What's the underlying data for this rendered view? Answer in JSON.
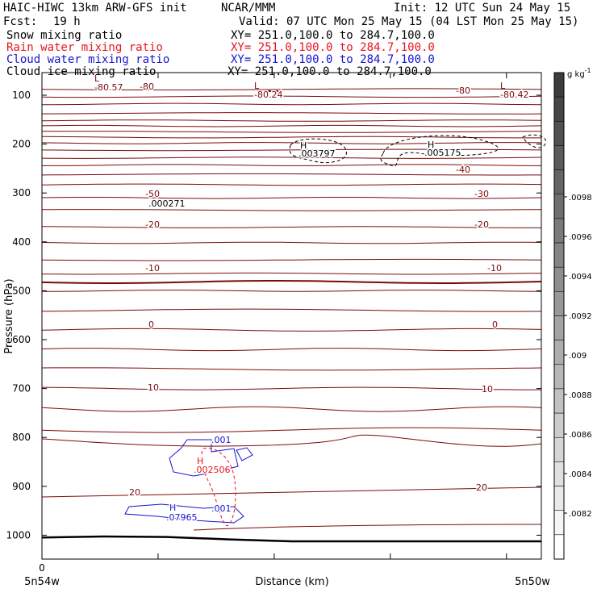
{
  "header": {
    "model": "HAIC-HIWC 13km ARW-GFS init",
    "org": "NCAR/MMM",
    "init": "Init: 12 UTC Sun 24 May 15",
    "fcst_label": "Fcst:",
    "fcst_value": "19 h",
    "valid": "Valid: 07 UTC Mon 25 May 15 (04 LST Mon 25 May 15)",
    "fields": [
      {
        "name": "Snow mixing ratio",
        "xy": "XY= 251.0,100.0 to 284.7,100.0",
        "color": "#000000"
      },
      {
        "name": "Rain water mixing ratio",
        "xy": "XY= 251.0,100.0 to 284.7,100.0",
        "color": "#e8141e"
      },
      {
        "name": "Cloud water mixing ratio",
        "xy": "XY= 251.0,100.0 to 284.7,100.0",
        "color": "#1414d2"
      },
      {
        "name": "Cloud ice mixing ratio",
        "xy": "XY= 251.0,100.0 to 284.7,100.0",
        "color": "#000000"
      }
    ]
  },
  "chart_data": {
    "type": "contour cross-section",
    "xlabel": "Distance (km)",
    "ylabel": "Pressure (hPa)",
    "x_tick_labels": [
      "0"
    ],
    "x_end_labels": [
      "5n54w",
      "5n50w"
    ],
    "y_ticks": [
      100,
      200,
      300,
      400,
      500,
      600,
      700,
      800,
      900,
      1000
    ],
    "y_scale": "linear pressure, increasing downward",
    "ylim": [
      1050,
      50
    ],
    "colorbar": {
      "unit": "g kg",
      "unit_exp": "-1",
      "labels": [
        ".0082",
        ".0084",
        ".0086",
        ".0088",
        ".009",
        ".0092",
        ".0094",
        ".0096",
        ".0098"
      ]
    },
    "temperature_labels": [
      {
        "value": "-80.57",
        "kind": "L"
      },
      {
        "value": "-80",
        "kind": "contour"
      },
      {
        "value": "-80.24",
        "kind": "L"
      },
      {
        "value": "-80",
        "kind": "contour"
      },
      {
        "value": "-80.42",
        "kind": "L"
      },
      {
        "value": "-40",
        "kind": "contour"
      },
      {
        "value": "-50",
        "kind": "contour"
      },
      {
        "value": "-30",
        "kind": "contour"
      },
      {
        "value": "-20",
        "kind": "contour"
      },
      {
        "value": "-20",
        "kind": "contour"
      },
      {
        "value": "-10",
        "kind": "contour"
      },
      {
        "value": "-10",
        "kind": "contour"
      },
      {
        "value": "0",
        "kind": "contour"
      },
      {
        "value": "0",
        "kind": "contour"
      },
      {
        "value": "10",
        "kind": "contour"
      },
      {
        "value": "10",
        "kind": "contour"
      },
      {
        "value": "20",
        "kind": "contour"
      },
      {
        "value": "20",
        "kind": "contour"
      }
    ],
    "field_labels": [
      {
        "text": "H",
        "field": "cloud_ice"
      },
      {
        "text": ".003797",
        "field": "cloud_ice"
      },
      {
        "text": "H",
        "field": "cloud_ice"
      },
      {
        "text": ".005175",
        "field": "cloud_ice"
      },
      {
        "text": ".000271",
        "field": "cloud_ice"
      },
      {
        "text": ".001",
        "field": "cloud_water"
      },
      {
        "text": "H",
        "field": "rain_water"
      },
      {
        "text": ".002506",
        "field": "rain_water"
      },
      {
        "text": "H",
        "field": "cloud_water"
      },
      {
        "text": ".07965",
        "field": "cloud_water"
      },
      {
        "text": ".001",
        "field": "cloud_water"
      }
    ],
    "surface_pressure_hPa": [
      998,
      996,
      997,
      1002,
      1006,
      1006,
      1006,
      1006,
      1006
    ]
  },
  "colors": {
    "temperature": "#7a0a0a",
    "rain": "#e8141e",
    "cloud_water": "#1414d2",
    "cloud_ice": "#000000",
    "frame": "#000000"
  }
}
